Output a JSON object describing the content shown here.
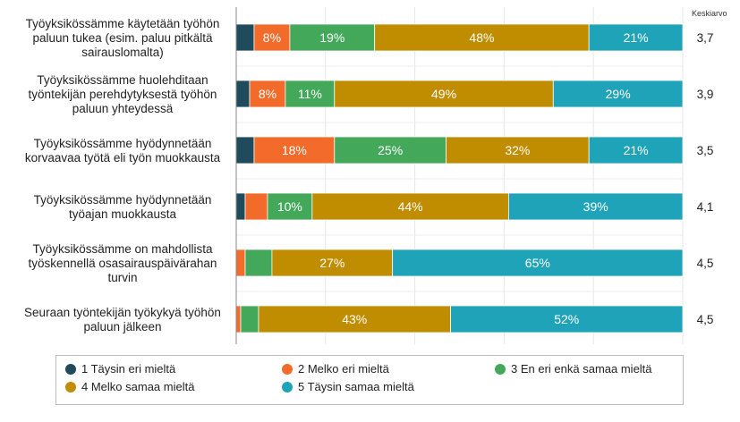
{
  "chart_data": {
    "type": "bar",
    "orientation": "horizontal",
    "stacked": true,
    "xlim": [
      0,
      100
    ],
    "grid": true,
    "legend_placement": "bottom",
    "mean_header": "Keskiarvo",
    "categories": [
      [
        "Työyksikössämme käytetään työhön",
        "paluun tukea (esim. paluu pitkältä",
        "sairauslomalta)"
      ],
      [
        "Työyksikössämme huolehditaan",
        "työntekijän perehdytyksestä työhön",
        "paluun yhteydessä"
      ],
      [
        "Työyksikössämme hyödynnetään",
        "korvaavaa työtä eli työn muokkausta"
      ],
      [
        "Työyksikössämme hyödynnetään",
        "työajan muokkausta"
      ],
      [
        "Työyksikössämme on mahdollista",
        "työskennellä osasairauspäivärahan",
        "turvin"
      ],
      [
        "Seuraan työntekijän työkykyä työhön",
        "paluun jälkeen"
      ]
    ],
    "means": [
      "3,7",
      "3,9",
      "3,5",
      "4,1",
      "4,5",
      "4,5"
    ],
    "series": [
      {
        "name": "1 Täysin eri mieltä",
        "color": "#1f4b5c",
        "values": [
          4,
          3,
          4,
          2,
          0,
          0
        ]
      },
      {
        "name": "2 Melko eri mieltä",
        "color": "#f26b2a",
        "values": [
          8,
          8,
          18,
          5,
          2,
          1
        ]
      },
      {
        "name": "3 En eri enkä samaa mieltä",
        "color": "#44a85a",
        "values": [
          19,
          11,
          25,
          10,
          6,
          4
        ]
      },
      {
        "name": "4 Melko samaa mieltä",
        "color": "#c08c00",
        "values": [
          48,
          49,
          32,
          44,
          27,
          43
        ]
      },
      {
        "name": "5 Täysin samaa mieltä",
        "color": "#1fa3b8",
        "values": [
          21,
          29,
          21,
          39,
          65,
          52
        ]
      }
    ],
    "data_labels_shown_min": 8
  }
}
